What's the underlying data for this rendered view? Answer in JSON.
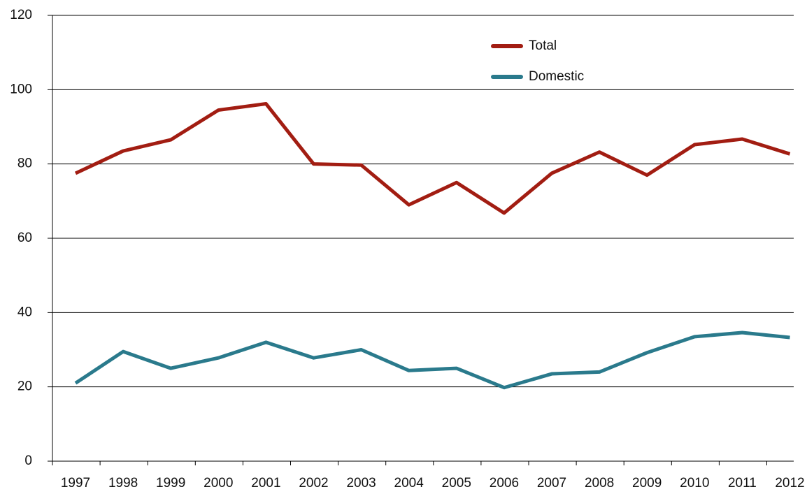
{
  "chart_data": {
    "type": "line",
    "categories": [
      "1997",
      "1998",
      "1999",
      "2000",
      "2001",
      "2002",
      "2003",
      "2004",
      "2005",
      "2006",
      "2007",
      "2008",
      "2009",
      "2010",
      "2011",
      "2012"
    ],
    "series": [
      {
        "name": "Total",
        "color": "#a21d12",
        "values": [
          77.5,
          83.5,
          86.5,
          94.5,
          96.2,
          80,
          79.7,
          69,
          75,
          66.8,
          77.5,
          83.2,
          77,
          85.2,
          86.7,
          82.7
        ]
      },
      {
        "name": "Domestic",
        "color": "#2a7a8c",
        "values": [
          21,
          29.5,
          25,
          27.8,
          32,
          27.8,
          30,
          24.4,
          25,
          19.8,
          23.5,
          24,
          29.2,
          33.5,
          34.6,
          33.3
        ]
      }
    ],
    "ylim": [
      0,
      120
    ],
    "yticks": [
      0,
      20,
      40,
      60,
      80,
      100,
      120
    ],
    "grid": true
  }
}
